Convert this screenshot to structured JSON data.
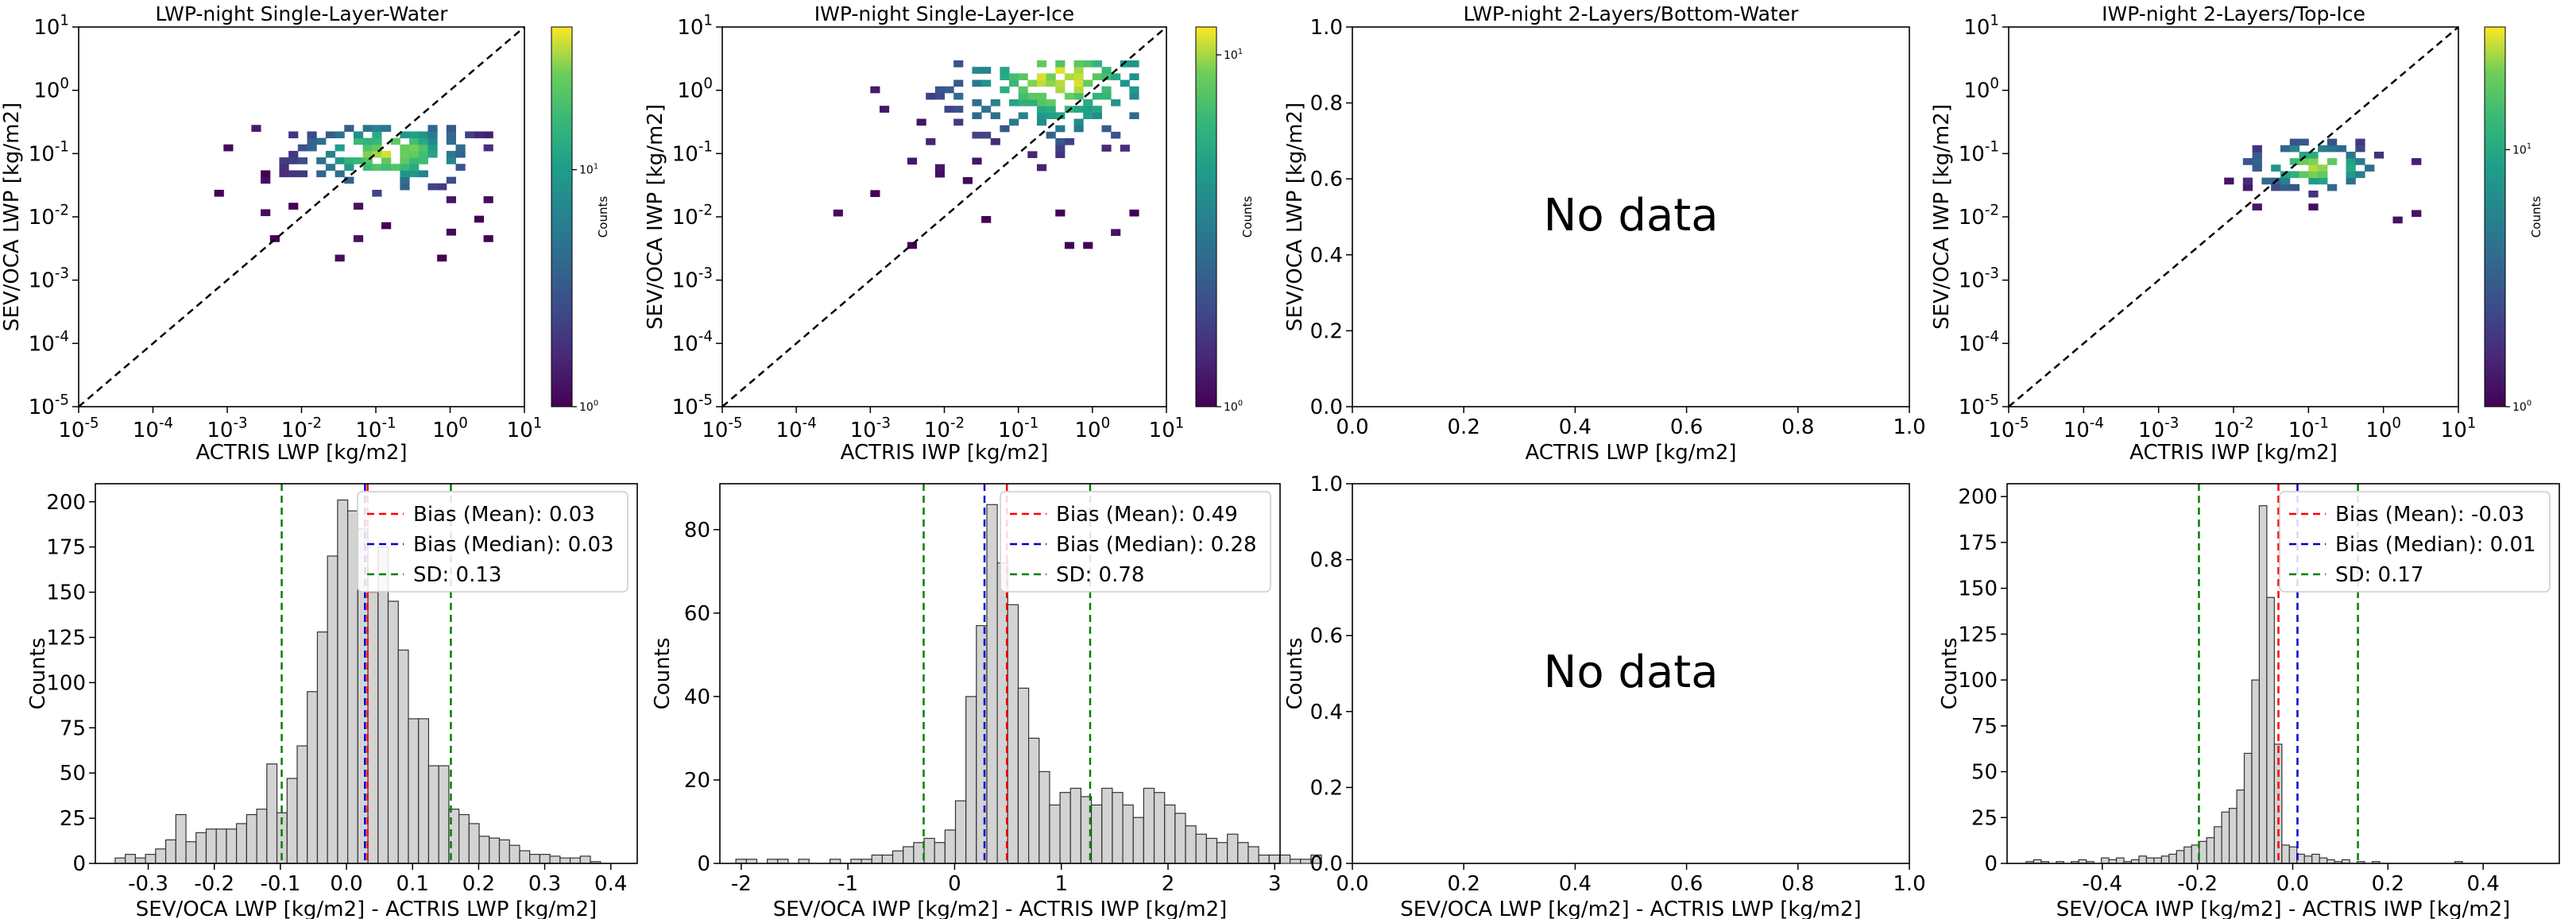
{
  "chart_data": [
    {
      "panel": "top-1",
      "type": "heatmap",
      "title": "LWP-night Single-Layer-Water",
      "xlabel": "ACTRIS LWP [kg/m2]",
      "ylabel": "SEV/OCA LWP [kg/m2]",
      "xscale": "log",
      "yscale": "log",
      "xlim": [
        1e-05,
        10
      ],
      "ylim": [
        1e-05,
        10
      ],
      "x_ticks": [
        -5,
        -4,
        -3,
        -2,
        -1,
        0,
        1
      ],
      "y_ticks": [
        -5,
        -4,
        -3,
        -2,
        -1,
        0,
        1
      ],
      "reference_line": "y = x (dashed black)",
      "colorbar": {
        "label": "Counts",
        "scale": "log",
        "ticks": [
          {
            "base": "10",
            "exp": "0",
            "value": 1
          },
          {
            "base": "10",
            "exp": "1",
            "value": 10
          }
        ],
        "vmin": 1,
        "vmax": 40
      },
      "cells": {
        "xrange": [
          -3.3,
          0.5
        ],
        "yrange": [
          -2.7,
          -0.6
        ],
        "peak": [
          -0.9,
          -1.05
        ],
        "sx": 0.75,
        "sy": 0.35,
        "density": 0.78,
        "seed": 11
      },
      "nodata_text": ""
    },
    {
      "panel": "top-2",
      "type": "heatmap",
      "title": "IWP-night Single-Layer-Ice",
      "xlabel": "ACTRIS IWP [kg/m2]",
      "ylabel": "SEV/OCA IWP [kg/m2]",
      "xscale": "log",
      "yscale": "log",
      "xlim": [
        1e-05,
        10
      ],
      "ylim": [
        1e-05,
        10
      ],
      "x_ticks": [
        -5,
        -4,
        -3,
        -2,
        -1,
        0,
        1
      ],
      "y_ticks": [
        -5,
        -4,
        -3,
        -2,
        -1,
        0,
        1
      ],
      "reference_line": "y = x (dashed black)",
      "colorbar": {
        "label": "Counts",
        "scale": "log",
        "ticks": [
          {
            "base": "10",
            "exp": "0",
            "value": 1
          },
          {
            "base": "10",
            "exp": "1",
            "value": 10
          }
        ],
        "vmin": 1,
        "vmax": 12
      },
      "cells": {
        "xrange": [
          -3.5,
          0.6
        ],
        "yrange": [
          -2.5,
          0.4
        ],
        "peak": [
          -0.5,
          0.1
        ],
        "sx": 1.0,
        "sy": 0.6,
        "density": 0.6,
        "seed": 23
      },
      "nodata_text": ""
    },
    {
      "panel": "top-3",
      "type": "empty",
      "title": "LWP-night 2-Layers/Bottom-Water",
      "xlabel": "ACTRIS LWP [kg/m2]",
      "ylabel": "SEV/OCA LWP [kg/m2]",
      "xlim": [
        0.0,
        1.0
      ],
      "ylim": [
        0.0,
        1.0
      ],
      "x_ticks": [
        "0.0",
        "0.2",
        "0.4",
        "0.6",
        "0.8",
        "1.0"
      ],
      "y_ticks": [
        "0.0",
        "0.2",
        "0.4",
        "0.6",
        "0.8",
        "1.0"
      ],
      "nodata_text": "No data"
    },
    {
      "panel": "top-4",
      "type": "heatmap",
      "title": "IWP-night 2-Layers/Top-Ice",
      "xlabel": "ACTRIS IWP [kg/m2]",
      "ylabel": "SEV/OCA IWP [kg/m2]",
      "xscale": "log",
      "yscale": "log",
      "xlim": [
        1e-05,
        10
      ],
      "ylim": [
        1e-05,
        10
      ],
      "x_ticks": [
        -5,
        -4,
        -3,
        -2,
        -1,
        0,
        1
      ],
      "y_ticks": [
        -5,
        -4,
        -3,
        -2,
        -1,
        0,
        1
      ],
      "reference_line": "y = x (dashed black)",
      "colorbar": {
        "label": "Counts",
        "scale": "log",
        "ticks": [
          {
            "base": "10",
            "exp": "0",
            "value": 1
          },
          {
            "base": "10",
            "exp": "1",
            "value": 10
          }
        ],
        "vmin": 1,
        "vmax": 30
      },
      "cells": {
        "xrange": [
          -3.0,
          0.5
        ],
        "yrange": [
          -2.2,
          -0.8
        ],
        "peak": [
          -1.0,
          -1.25
        ],
        "sx": 0.55,
        "sy": 0.25,
        "density": 0.8,
        "seed": 37
      },
      "nodata_text": ""
    },
    {
      "panel": "bottom-1",
      "type": "histogram",
      "title": "",
      "xlabel": "SEV/OCA LWP [kg/m2] - ACTRIS LWP [kg/m2]",
      "ylabel": "Counts",
      "xlim": [
        -0.38,
        0.44
      ],
      "ylim": [
        0,
        210
      ],
      "x_ticks": [
        "-0.3",
        "-0.2",
        "-0.1",
        "0.0",
        "0.1",
        "0.2",
        "0.3",
        "0.4"
      ],
      "x_tick_values": [
        -0.3,
        -0.2,
        -0.1,
        0.0,
        0.1,
        0.2,
        0.3,
        0.4
      ],
      "y_ticks": [
        "0",
        "25",
        "50",
        "75",
        "100",
        "125",
        "150",
        "175",
        "200"
      ],
      "bin_start": -0.35,
      "bin_width": 0.0153,
      "counts": [
        3,
        5,
        3,
        5,
        8,
        13,
        27,
        12,
        17,
        19,
        19,
        19,
        22,
        27,
        30,
        55,
        28,
        47,
        65,
        95,
        128,
        170,
        201,
        195,
        185,
        150,
        175,
        145,
        118,
        80,
        80,
        54,
        54,
        30,
        27,
        22,
        15,
        14,
        13,
        10,
        7,
        5,
        5,
        4,
        3,
        3,
        4,
        1
      ],
      "bias_mean": 0.03,
      "bias_median": 0.03,
      "sd": 0.13,
      "lines": {
        "mean": 0.032,
        "median": 0.028,
        "sd_low": -0.098,
        "sd_high": 0.158
      },
      "legend": [
        "Bias (Mean): 0.03",
        "Bias (Median): 0.03",
        "SD: 0.13"
      ],
      "nodata_text": ""
    },
    {
      "panel": "bottom-2",
      "type": "histogram",
      "title": "",
      "xlabel": "SEV/OCA IWP [kg/m2] - ACTRIS IWP [kg/m2]",
      "ylabel": "Counts",
      "xlim": [
        -2.2,
        3.05
      ],
      "ylim": [
        0,
        91
      ],
      "x_ticks": [
        "-2",
        "-1",
        "0",
        "1",
        "2",
        "3"
      ],
      "x_tick_values": [
        -2,
        -1,
        0,
        1,
        2,
        3
      ],
      "y_ticks": [
        "0",
        "20",
        "40",
        "60",
        "80"
      ],
      "bin_start": -2.05,
      "bin_width": 0.098,
      "counts": [
        1,
        1,
        0,
        1,
        1,
        0,
        1,
        0,
        0,
        1,
        0,
        1,
        1,
        2,
        2,
        3,
        4,
        5,
        6,
        5,
        8,
        15,
        40,
        57,
        86,
        72,
        62,
        42,
        30,
        22,
        14,
        17,
        18,
        16,
        14,
        18,
        17,
        14,
        11,
        18,
        17,
        14,
        12,
        9,
        7,
        6,
        5,
        7,
        5,
        4,
        2,
        2,
        2,
        1,
        1,
        2
      ],
      "bias_mean": 0.49,
      "bias_median": 0.28,
      "sd": 0.78,
      "lines": {
        "mean": 0.49,
        "median": 0.28,
        "sd_low": -0.29,
        "sd_high": 1.27
      },
      "legend": [
        "Bias (Mean): 0.49",
        "Bias (Median): 0.28",
        "SD: 0.78"
      ],
      "nodata_text": ""
    },
    {
      "panel": "bottom-3",
      "type": "empty",
      "title": "",
      "xlabel": "SEV/OCA LWP [kg/m2] - ACTRIS LWP [kg/m2]",
      "ylabel": "Counts",
      "xlim": [
        0.0,
        1.0
      ],
      "ylim": [
        0.0,
        1.0
      ],
      "x_ticks": [
        "0.0",
        "0.2",
        "0.4",
        "0.6",
        "0.8",
        "1.0"
      ],
      "y_ticks": [
        "0.0",
        "0.2",
        "0.4",
        "0.6",
        "0.8",
        "1.0"
      ],
      "nodata_text": "No data"
    },
    {
      "panel": "bottom-4",
      "type": "histogram",
      "title": "",
      "xlabel": "SEV/OCA IWP [kg/m2] - ACTRIS IWP [kg/m2]",
      "ylabel": "Counts",
      "xlim": [
        -0.6,
        0.56
      ],
      "ylim": [
        0,
        207
      ],
      "x_ticks": [
        "-0.4",
        "-0.2",
        "0.0",
        "0.2",
        "0.4"
      ],
      "x_tick_values": [
        -0.4,
        -0.2,
        0.0,
        0.2,
        0.4
      ],
      "y_ticks": [
        "0",
        "25",
        "50",
        "75",
        "100",
        "125",
        "150",
        "175",
        "200"
      ],
      "bin_start": -0.56,
      "bin_width": 0.0158,
      "counts": [
        1,
        2,
        1,
        0,
        1,
        0,
        1,
        2,
        1,
        0,
        3,
        2,
        3,
        1,
        2,
        4,
        3,
        3,
        4,
        5,
        7,
        9,
        10,
        12,
        14,
        20,
        28,
        30,
        40,
        60,
        100,
        195,
        145,
        65,
        10,
        9,
        5,
        4,
        5,
        3,
        2,
        1,
        2,
        0,
        1,
        0,
        1,
        0,
        0,
        0,
        0,
        0,
        0,
        0,
        0,
        0,
        0,
        1
      ],
      "bias_mean": -0.03,
      "bias_median": 0.01,
      "sd": 0.17,
      "lines": {
        "mean": -0.03,
        "median": 0.01,
        "sd_low": -0.197,
        "sd_high": 0.137
      },
      "legend": [
        "Bias (Mean): -0.03",
        "Bias (Median): 0.01",
        "SD: 0.17"
      ],
      "nodata_text": ""
    }
  ],
  "colors": {
    "bias_mean": "#ff0000",
    "bias_median": "#0000cc",
    "sd": "#008000",
    "bar_fill": "#d3d3d3",
    "bar_edge": "#333333",
    "diagonal": "#000000"
  }
}
